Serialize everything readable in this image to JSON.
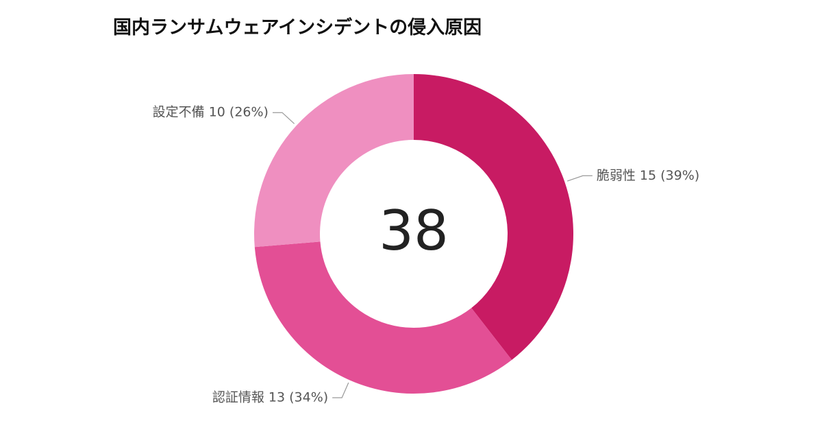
{
  "chart_data": {
    "type": "pie",
    "title": "国内ランサムウェアインシデントの侵入原因",
    "total_label": "38",
    "slices": [
      {
        "label": "脆弱性",
        "value": 15,
        "percent": "39%",
        "display": "脆弱性 15 (39%)",
        "color": "#c81b63"
      },
      {
        "label": "認証情報",
        "value": 13,
        "percent": "34%",
        "display": "認証情報 13 (34%)",
        "color": "#e34f95"
      },
      {
        "label": "設定不備",
        "value": 10,
        "percent": "26%",
        "display": "設定不備 10 (26%)",
        "color": "#ef8fc0"
      }
    ],
    "start_angle_deg": 0,
    "direction": "clockwise",
    "hole": "donut"
  }
}
